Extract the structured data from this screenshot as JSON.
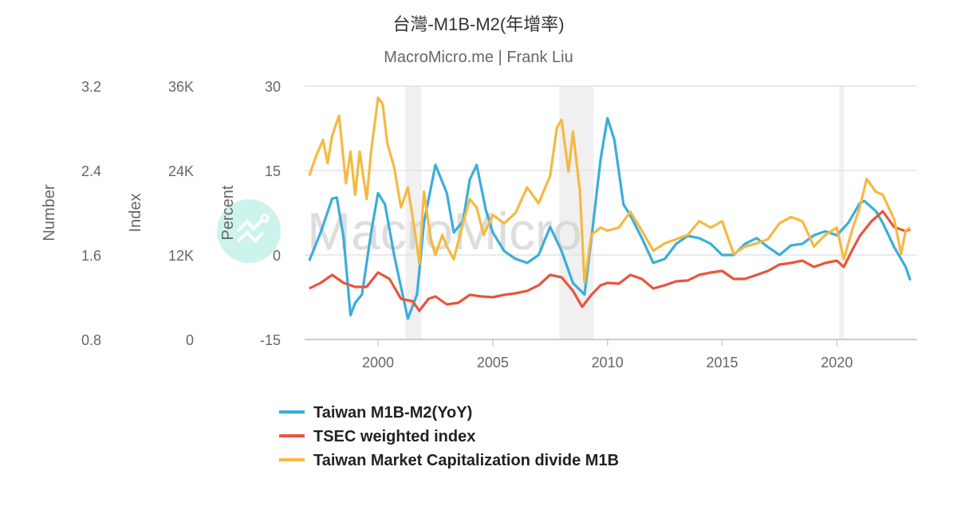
{
  "chart_data": {
    "type": "line",
    "title": "台灣-M1B-M2(年增率)",
    "subtitle": "MacroMicro.me | Frank Liu",
    "watermark": "MacroMicro",
    "x_ticks": [
      "2000",
      "2005",
      "2010",
      "2015",
      "2020"
    ],
    "xlim": [
      1996.8,
      2023.5
    ],
    "grid": true,
    "legend_placement": "bottom",
    "axes": [
      {
        "id": "number",
        "label": "Number",
        "ticks": [
          "3.2",
          "2.4",
          "1.6",
          "0.8"
        ],
        "ylim": [
          0.8,
          3.2
        ]
      },
      {
        "id": "index",
        "label": "Index",
        "ticks": [
          "36K",
          "24K",
          "12K",
          "0"
        ],
        "ylim": [
          0,
          36000
        ]
      },
      {
        "id": "percent",
        "label": "Percent",
        "ticks": [
          "30",
          "15",
          "0",
          "-15"
        ],
        "ylim": [
          -15,
          30
        ]
      }
    ],
    "shaded_periods": [
      [
        2001.2,
        2001.9
      ],
      [
        2007.9,
        2009.4
      ],
      [
        2020.1,
        2020.3
      ]
    ],
    "series": [
      {
        "name": "Taiwan M1B-M2(YoY)",
        "axis": "percent",
        "color": "#3aaed8",
        "x": [
          1997.0,
          1997.5,
          1998.0,
          1998.2,
          1998.5,
          1998.8,
          1999.0,
          1999.3,
          1999.7,
          2000.0,
          2000.3,
          2000.7,
          2001.0,
          2001.3,
          2001.7,
          2002.0,
          2002.5,
          2003.0,
          2003.3,
          2003.7,
          2004.0,
          2004.3,
          2004.7,
          2005.0,
          2005.5,
          2006.0,
          2006.5,
          2007.0,
          2007.5,
          2008.0,
          2008.5,
          2009.0,
          2009.3,
          2009.7,
          2010.0,
          2010.3,
          2010.7,
          2011.0,
          2011.5,
          2012.0,
          2012.5,
          2013.0,
          2013.5,
          2014.0,
          2014.5,
          2015.0,
          2015.5,
          2016.0,
          2016.5,
          2017.0,
          2017.5,
          2018.0,
          2018.5,
          2019.0,
          2019.5,
          2020.0,
          2020.5,
          2021.0,
          2021.2,
          2021.7,
          2022.0,
          2022.5,
          2023.0,
          2023.2
        ],
        "y": [
          -1,
          4,
          10,
          10.2,
          3,
          -10.7,
          -8.5,
          -7,
          4,
          11,
          9,
          0,
          -5.7,
          -11.3,
          -7,
          5.7,
          16,
          11,
          4,
          6,
          13.4,
          16,
          8,
          4,
          0.7,
          -0.7,
          -1.4,
          0,
          5,
          0.7,
          -5,
          -7,
          3,
          17,
          24.3,
          20.5,
          9,
          7,
          3,
          -1.4,
          -0.7,
          2,
          3.4,
          3,
          2,
          0,
          0,
          2,
          3,
          1.4,
          0,
          1.7,
          2,
          3.5,
          4.2,
          3.5,
          5.7,
          9.2,
          9.6,
          7.8,
          5.7,
          1.4,
          -2.1,
          -4.5
        ]
      },
      {
        "name": "TSEC weighted index",
        "axis": "index",
        "color": "#e8553e",
        "x": [
          1997.0,
          1997.5,
          1998.0,
          1998.5,
          1999.0,
          1999.5,
          2000.0,
          2000.5,
          2001.0,
          2001.5,
          2001.8,
          2002.2,
          2002.5,
          2003.0,
          2003.5,
          2004.0,
          2004.5,
          2005.0,
          2005.5,
          2006.0,
          2006.5,
          2007.0,
          2007.5,
          2008.0,
          2008.5,
          2008.9,
          2009.3,
          2009.7,
          2010.0,
          2010.5,
          2011.0,
          2011.5,
          2012.0,
          2012.5,
          2013.0,
          2013.5,
          2014.0,
          2014.5,
          2015.0,
          2015.5,
          2016.0,
          2016.5,
          2017.0,
          2017.5,
          2018.0,
          2018.5,
          2019.0,
          2019.5,
          2020.0,
          2020.3,
          2020.7,
          2021.0,
          2021.5,
          2022.0,
          2022.5,
          2023.0,
          2023.2
        ],
        "y": [
          7245,
          8040,
          9170,
          8040,
          7470,
          7470,
          9510,
          8600,
          5770,
          5430,
          4075,
          5770,
          6110,
          4980,
          5210,
          6340,
          6110,
          6000,
          6340,
          6570,
          6900,
          7700,
          9170,
          8830,
          6900,
          4640,
          6340,
          7700,
          8040,
          7920,
          9170,
          8600,
          7245,
          7700,
          8260,
          8380,
          9170,
          9510,
          9735,
          8600,
          8600,
          9170,
          9735,
          10640,
          10870,
          11200,
          10300,
          10870,
          11200,
          10300,
          12900,
          14700,
          16750,
          18200,
          15960,
          15400,
          15620
        ]
      },
      {
        "name": "Taiwan Market Capitalization divide M1B",
        "axis": "number",
        "color": "#f5b942",
        "x": [
          1997.0,
          1997.3,
          1997.6,
          1997.8,
          1998.0,
          1998.3,
          1998.6,
          1998.8,
          1999.0,
          1999.2,
          1999.5,
          1999.7,
          2000.0,
          2000.2,
          2000.4,
          2000.7,
          2001.0,
          2001.3,
          2001.6,
          2001.8,
          2002.0,
          2002.3,
          2002.5,
          2002.8,
          2003.0,
          2003.3,
          2003.7,
          2004.0,
          2004.3,
          2004.6,
          2005.0,
          2005.5,
          2006.0,
          2006.5,
          2007.0,
          2007.5,
          2007.8,
          2008.0,
          2008.3,
          2008.5,
          2008.8,
          2009.0,
          2009.3,
          2009.7,
          2010.0,
          2010.5,
          2011.0,
          2011.5,
          2012.0,
          2012.5,
          2013.0,
          2013.5,
          2014.0,
          2014.5,
          2015.0,
          2015.5,
          2016.0,
          2016.5,
          2017.0,
          2017.5,
          2018.0,
          2018.5,
          2019.0,
          2019.5,
          2020.0,
          2020.3,
          2020.7,
          2021.0,
          2021.3,
          2021.7,
          2022.0,
          2022.5,
          2022.8,
          2023.0,
          2023.2
        ],
        "y": [
          2.35,
          2.54,
          2.69,
          2.47,
          2.73,
          2.92,
          2.28,
          2.58,
          2.17,
          2.58,
          2.13,
          2.58,
          3.09,
          3.03,
          2.66,
          2.43,
          2.05,
          2.24,
          1.83,
          1.52,
          2.2,
          1.75,
          1.6,
          1.79,
          1.68,
          1.56,
          1.9,
          2.13,
          2.05,
          1.79,
          1.98,
          1.9,
          2.0,
          2.24,
          2.09,
          2.35,
          2.81,
          2.88,
          2.39,
          2.77,
          2.2,
          1.34,
          1.79,
          1.86,
          1.83,
          1.86,
          2.01,
          1.83,
          1.64,
          1.71,
          1.75,
          1.79,
          1.92,
          1.86,
          1.92,
          1.61,
          1.68,
          1.71,
          1.75,
          1.9,
          1.96,
          1.92,
          1.68,
          1.79,
          1.86,
          1.56,
          1.86,
          2.05,
          2.32,
          2.2,
          2.17,
          1.94,
          1.61,
          1.83,
          1.86
        ]
      }
    ]
  }
}
